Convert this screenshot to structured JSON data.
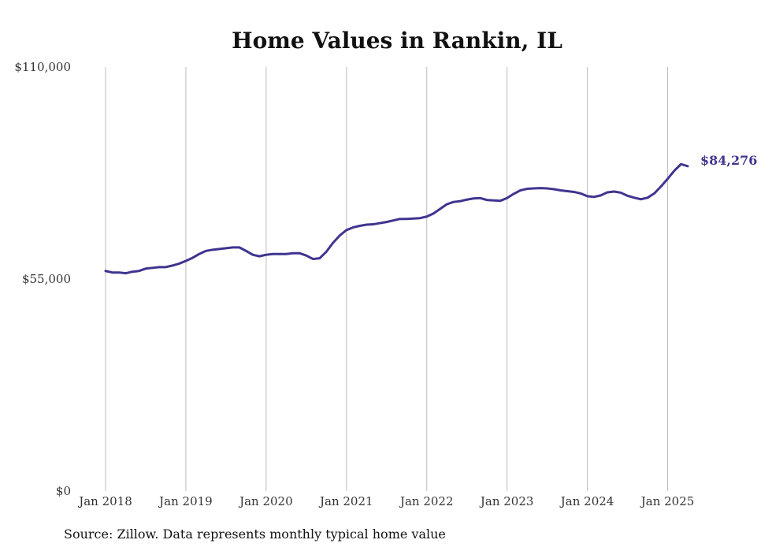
{
  "colors": {
    "line": "#3f3590",
    "end_label": "#3f3590",
    "grid": "#bdbdbd",
    "text": "#333333"
  },
  "source_note": "Source: Zillow. Data represents monthly typical home value",
  "chart_data": {
    "type": "line",
    "title": "Home Values in Rankin, IL",
    "xlabel": "",
    "ylabel": "",
    "ylim": [
      0,
      110000
    ],
    "xlim": [
      "2018-01",
      "2025-04"
    ],
    "y_ticks": [
      {
        "value": 0,
        "label": "$0"
      },
      {
        "value": 55000,
        "label": "$55,000"
      },
      {
        "value": 110000,
        "label": "$110,000"
      }
    ],
    "x_ticks": [
      {
        "value": "2018-01",
        "label": "Jan 2018"
      },
      {
        "value": "2019-01",
        "label": "Jan 2019"
      },
      {
        "value": "2020-01",
        "label": "Jan 2020"
      },
      {
        "value": "2021-01",
        "label": "Jan 2021"
      },
      {
        "value": "2022-01",
        "label": "Jan 2022"
      },
      {
        "value": "2023-01",
        "label": "Jan 2023"
      },
      {
        "value": "2024-01",
        "label": "Jan 2024"
      },
      {
        "value": "2025-01",
        "label": "Jan 2025"
      }
    ],
    "grid": {
      "vertical": true,
      "horizontal": false
    },
    "end_label": "$84,276",
    "series": [
      {
        "x": [
          "2018-01",
          "2018-02",
          "2018-03",
          "2018-04",
          "2018-05",
          "2018-06",
          "2018-07",
          "2018-08",
          "2018-09",
          "2018-10",
          "2018-11",
          "2018-12",
          "2019-01",
          "2019-02",
          "2019-03",
          "2019-04",
          "2019-05",
          "2019-06",
          "2019-07",
          "2019-08",
          "2019-09",
          "2019-10",
          "2019-11",
          "2019-12",
          "2020-01",
          "2020-02",
          "2020-03",
          "2020-04",
          "2020-05",
          "2020-06",
          "2020-07",
          "2020-08",
          "2020-09",
          "2020-10",
          "2020-11",
          "2020-12",
          "2021-01",
          "2021-02",
          "2021-03",
          "2021-04",
          "2021-05",
          "2021-06",
          "2021-07",
          "2021-08",
          "2021-09",
          "2021-10",
          "2021-11",
          "2021-12",
          "2022-01",
          "2022-02",
          "2022-03",
          "2022-04",
          "2022-05",
          "2022-06",
          "2022-07",
          "2022-08",
          "2022-09",
          "2022-10",
          "2022-11",
          "2022-12",
          "2023-01",
          "2023-02",
          "2023-03",
          "2023-04",
          "2023-05",
          "2023-06",
          "2023-07",
          "2023-08",
          "2023-09",
          "2023-10",
          "2023-11",
          "2023-12",
          "2024-01",
          "2024-02",
          "2024-03",
          "2024-04",
          "2024-05",
          "2024-06",
          "2024-07",
          "2024-08",
          "2024-09",
          "2024-10",
          "2024-11",
          "2024-12",
          "2025-01",
          "2025-02",
          "2025-03",
          "2025-04"
        ],
        "values": [
          57100,
          56700,
          56700,
          56500,
          56900,
          57100,
          57700,
          57900,
          58100,
          58100,
          58500,
          59000,
          59700,
          60500,
          61500,
          62300,
          62600,
          62800,
          63000,
          63200,
          63200,
          62300,
          61300,
          60900,
          61300,
          61500,
          61500,
          61500,
          61700,
          61700,
          61100,
          60200,
          60400,
          62100,
          64400,
          66300,
          67700,
          68400,
          68800,
          69100,
          69200,
          69500,
          69800,
          70200,
          70600,
          70600,
          70700,
          70800,
          71200,
          72000,
          73200,
          74400,
          75000,
          75200,
          75600,
          75900,
          76000,
          75500,
          75400,
          75300,
          76000,
          77100,
          78000,
          78400,
          78500,
          78600,
          78500,
          78300,
          78000,
          77800,
          77600,
          77200,
          76500,
          76300,
          76700,
          77500,
          77700,
          77400,
          76600,
          76100,
          75700,
          76100,
          77200,
          79000,
          81000,
          83100,
          84800,
          84276
        ]
      }
    ]
  }
}
